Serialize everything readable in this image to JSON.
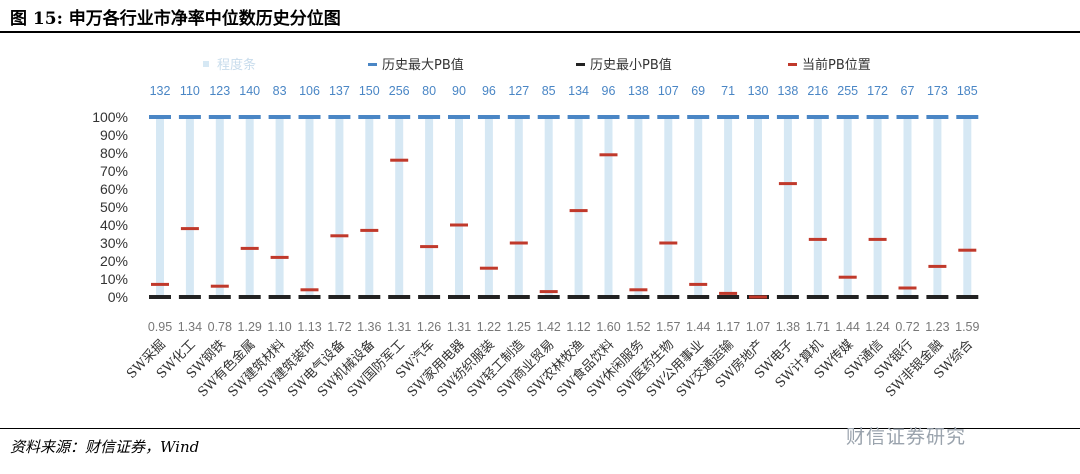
{
  "header": {
    "title": "图 15:  申万各行业市净率中位数历史分位图"
  },
  "footer": {
    "source": "资料来源：财信证券，Wind",
    "watermark": "财信证券研究"
  },
  "chart_data": {
    "type": "bar",
    "categories": [
      "SW采掘",
      "SW化工",
      "SW钢铁",
      "SW有色金属",
      "SW建筑材料",
      "SW建筑装饰",
      "SW电气设备",
      "SW机械设备",
      "SW国防军工",
      "SW汽车",
      "SW家用电器",
      "SW纺织服装",
      "SW轻工制造",
      "SW商业贸易",
      "SW农林牧渔",
      "SW食品饮料",
      "SW休闲服务",
      "SW医药生物",
      "SW公用事业",
      "SW交通运输",
      "SW房地产",
      "SW电子",
      "SW计算机",
      "SW传媒",
      "SW通信",
      "SW银行",
      "SW非银金融",
      "SW综合"
    ],
    "max_pb": [
      132,
      110,
      123,
      140,
      83,
      106,
      137,
      150,
      256,
      80,
      90,
      96,
      127,
      85,
      134,
      96,
      138,
      107,
      69,
      71,
      130,
      138,
      216,
      255,
      172,
      67,
      173,
      185
    ],
    "min_pb": [
      0.95,
      1.34,
      0.78,
      1.29,
      1.1,
      1.13,
      1.72,
      1.36,
      1.31,
      1.26,
      1.31,
      1.22,
      1.25,
      1.42,
      1.12,
      1.6,
      1.52,
      1.57,
      1.44,
      1.17,
      1.07,
      1.38,
      1.71,
      1.44,
      1.24,
      0.72,
      1.23,
      1.59
    ],
    "current_percentile": [
      7,
      38,
      6,
      27,
      22,
      4,
      34,
      37,
      76,
      28,
      40,
      16,
      30,
      3,
      48,
      79,
      4,
      30,
      7,
      2,
      0,
      63,
      32,
      11,
      32,
      5,
      17,
      26
    ],
    "series": [
      {
        "name": "程度条",
        "color": "#d6e8f4"
      },
      {
        "name": "历史最大PB值",
        "color": "#4a86c5"
      },
      {
        "name": "历史最小PB值",
        "color": "#222222"
      },
      {
        "name": "当前PB位置",
        "color": "#c0392b"
      }
    ],
    "yticks": [
      "0%",
      "10%",
      "20%",
      "30%",
      "40%",
      "50%",
      "60%",
      "70%",
      "80%",
      "90%",
      "100%"
    ],
    "ylim": [
      0,
      100
    ],
    "legend_position": "top"
  }
}
